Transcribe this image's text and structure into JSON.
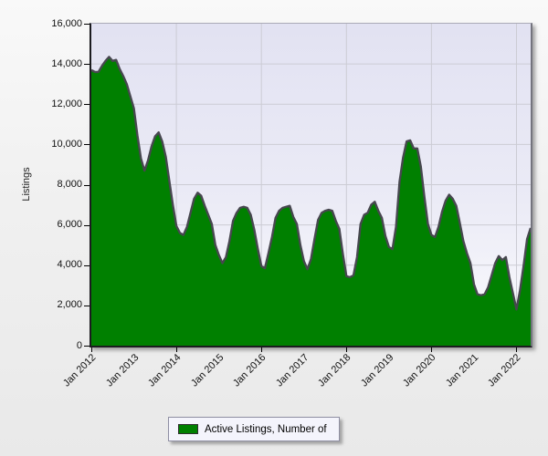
{
  "colors": {
    "series_fill": "#008000",
    "series_outline": "#47474f",
    "gridline": "#ccccd4",
    "plot_bg_top": "#e2e2f2",
    "plot_bg_bottom": "#fbfbfe",
    "axis": "#1b1b1f",
    "legend_bg": "#f4f4fc",
    "legend_border": "#8f8fa3"
  },
  "y_axis": {
    "title": "Listings",
    "tick_labels": [
      "16,000",
      "14,000",
      "12,000",
      "10,000",
      "8,000",
      "6,000",
      "4,000",
      "2,000",
      "0"
    ]
  },
  "x_axis": {
    "tick_labels": [
      "Jan 2012",
      "Jan 2013",
      "Jan 2014",
      "Jan 2015",
      "Jan 2016",
      "Jan 2017",
      "Jan 2018",
      "Jan 2019",
      "Jan 2020",
      "Jan 2021",
      "Jan 2022"
    ],
    "major_tick_labels": [
      "Jan 2012",
      "Jan 2014",
      "Jan 2016",
      "Jan 2018",
      "Jan 2020",
      "Jan 2022"
    ]
  },
  "legend": {
    "label": "Active Listings, Number of"
  },
  "chart_data": {
    "type": "area",
    "title": "",
    "xlabel": "",
    "ylabel": "Listings",
    "ylim": [
      0,
      16000
    ],
    "y_tick_step": 2000,
    "grid": true,
    "legend_position": "bottom",
    "x_start": "Jan 2012",
    "x_frequency": "monthly",
    "x_months_per_gridline": 24,
    "series": [
      {
        "name": "Active Listings, Number of",
        "color": "#008000",
        "values": [
          13700,
          13600,
          13600,
          13900,
          14150,
          14350,
          14150,
          14200,
          13750,
          13400,
          13000,
          12400,
          11800,
          10450,
          9300,
          8700,
          9200,
          9900,
          10400,
          10600,
          10150,
          9400,
          8200,
          7000,
          5950,
          5600,
          5500,
          5900,
          6600,
          7300,
          7600,
          7450,
          6950,
          6500,
          6050,
          5000,
          4500,
          4100,
          4400,
          5200,
          6200,
          6600,
          6850,
          6900,
          6850,
          6500,
          5750,
          4800,
          3950,
          3850,
          4600,
          5400,
          6350,
          6700,
          6850,
          6900,
          6950,
          6400,
          6050,
          5000,
          4200,
          3800,
          4300,
          5300,
          6250,
          6600,
          6700,
          6750,
          6700,
          6200,
          5800,
          4550,
          3450,
          3400,
          3500,
          4400,
          6050,
          6500,
          6600,
          7000,
          7150,
          6700,
          6350,
          5450,
          4900,
          4800,
          5900,
          8150,
          9350,
          10150,
          10200,
          9800,
          9800,
          8900,
          7400,
          6050,
          5500,
          5400,
          5900,
          6650,
          7200,
          7500,
          7300,
          6950,
          6100,
          5200,
          4600,
          4100,
          3050,
          2550,
          2500,
          2550,
          2900,
          3500,
          4100,
          4450,
          4250,
          4400,
          3400,
          2600,
          1800,
          2750,
          3950,
          5300,
          5850
        ]
      }
    ]
  }
}
